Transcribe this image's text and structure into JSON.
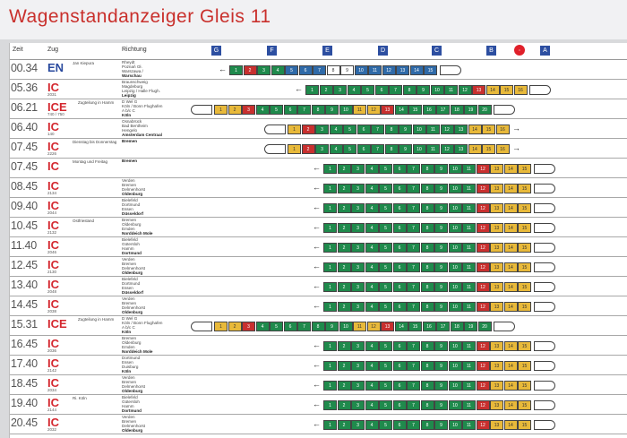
{
  "title": "Wagenstandanzeiger Gleis 11",
  "header": {
    "zeit": "Zeit",
    "zug": "Zug",
    "richtung": "Richtung",
    "sectors": [
      "G",
      "F",
      "E",
      "D",
      "C",
      "B",
      "A"
    ]
  },
  "rows": [
    {
      "time": "00.34",
      "type": "EN",
      "num": "",
      "note": "Jan Kiepura",
      "dest": [
        "Rheydt",
        "Poznań Gł.",
        "Warszawa /",
        "Warschau"
      ],
      "final": "Warszawa / Warschau",
      "pattern": "en"
    },
    {
      "time": "05.36",
      "type": "IC",
      "num": "2031",
      "note": "",
      "dest": [
        "Braunschweig",
        "Magdeburg",
        "Leipzig / Halle Flugh.",
        "Leipzig"
      ],
      "final": "Leipzig",
      "pattern": "ic1"
    },
    {
      "time": "06.21",
      "type": "ICE",
      "num": "740 / 750",
      "note": "Zugteilung in Hamm",
      "dest": [
        "D Wel G",
        "Köln / Bonn Flughafen",
        "A b/c C",
        "Köln"
      ],
      "final": "Köln",
      "pattern": "ice"
    },
    {
      "time": "06.40",
      "type": "IC",
      "num": "140",
      "note": "",
      "dest": [
        "Osnabrück",
        "Bad Bentheim",
        "Hengelo",
        "Amsterdam Centraal"
      ],
      "final": "Amsterdam Centraal",
      "pattern": "ic2"
    },
    {
      "time": "07.45",
      "type": "IC",
      "num": "2226",
      "note": "Dienstag bis Donnerstag",
      "dest": [
        "",
        "",
        "",
        "Bremen"
      ],
      "final": "Bremen",
      "pattern": "ic2"
    },
    {
      "time": "07.45",
      "type": "IC",
      "num": "",
      "note": "Montag und Freitag",
      "dest": [
        "",
        "",
        "",
        "Bremen"
      ],
      "final": "Bremen",
      "pattern": "ic3"
    },
    {
      "time": "08.45",
      "type": "IC",
      "num": "2134",
      "note": "",
      "dest": [
        "Verden",
        "Bremen",
        "Delmenhorst",
        "Oldenburg"
      ],
      "final": "Oldenburg",
      "pattern": "ic3"
    },
    {
      "time": "09.40",
      "type": "IC",
      "num": "2044",
      "note": "",
      "dest": [
        "Bielefeld",
        "Dortmund",
        "Essen",
        "Düsseldorf"
      ],
      "final": "Düsseldorf",
      "pattern": "ic3"
    },
    {
      "time": "10.45",
      "type": "IC",
      "num": "2132",
      "note": "Ostfriesland",
      "dest": [
        "Bremen",
        "Oldenburg",
        "Emden",
        "Norddeich Mole"
      ],
      "final": "Norddeich Mole",
      "pattern": "ic3"
    },
    {
      "time": "11.40",
      "type": "IC",
      "num": "2046",
      "note": "",
      "dest": [
        "Bielefeld",
        "Gütersloh",
        "Hamm",
        "Dortmund"
      ],
      "final": "Dortmund",
      "pattern": "ic3"
    },
    {
      "time": "12.45",
      "type": "IC",
      "num": "2130",
      "note": "",
      "dest": [
        "Verden",
        "Bremen",
        "Delmenhorst",
        "Oldenburg"
      ],
      "final": "Oldenburg",
      "pattern": "ic3"
    },
    {
      "time": "13.40",
      "type": "IC",
      "num": "2048",
      "note": "",
      "dest": [
        "Bielefeld",
        "Dortmund",
        "Essen",
        "Düsseldorf"
      ],
      "final": "Düsseldorf",
      "pattern": "ic3"
    },
    {
      "time": "14.45",
      "type": "IC",
      "num": "2038",
      "note": "",
      "dest": [
        "Verden",
        "Bremen",
        "Delmenhorst",
        "Oldenburg"
      ],
      "final": "Oldenburg",
      "pattern": "ic3"
    },
    {
      "time": "15.31",
      "type": "ICE",
      "num": "",
      "note": "Zugteilung in Hamm",
      "dest": [
        "D Wel G",
        "Köln / Bonn Flughafen",
        "A b/c C",
        "Köln"
      ],
      "final": "Köln",
      "pattern": "ice"
    },
    {
      "time": "16.45",
      "type": "IC",
      "num": "2036",
      "note": "",
      "dest": [
        "Bremen",
        "Oldenburg",
        "Emden",
        "Norddeich Mole"
      ],
      "final": "Norddeich Mole",
      "pattern": "ic3"
    },
    {
      "time": "17.40",
      "type": "IC",
      "num": "2142",
      "note": "",
      "dest": [
        "Dortmund",
        "Essen",
        "Duisburg",
        "Köln"
      ],
      "final": "Köln",
      "pattern": "ic3"
    },
    {
      "time": "18.45",
      "type": "IC",
      "num": "2034",
      "note": "",
      "dest": [
        "Verden",
        "Bremen",
        "Delmenhorst",
        "Oldenburg"
      ],
      "final": "Oldenburg",
      "pattern": "ic3"
    },
    {
      "time": "19.40",
      "type": "IC",
      "num": "2144",
      "note": "Ri. Köln",
      "dest": [
        "Bielefeld",
        "Gütersloh",
        "Hamm",
        "Dortmund"
      ],
      "final": "Dortmund",
      "pattern": "ic3"
    },
    {
      "time": "20.45",
      "type": "IC",
      "num": "2032",
      "note": "",
      "dest": [
        "Verden",
        "Bremen",
        "Delmenhorst",
        "Oldenburg"
      ],
      "final": "Oldenburg",
      "pattern": "ic3"
    }
  ],
  "colors": {
    "first": "#e8b93a",
    "second": "#1f8a4c",
    "restaurant": "#c8302f",
    "sleeper": "#2f6aa8"
  }
}
